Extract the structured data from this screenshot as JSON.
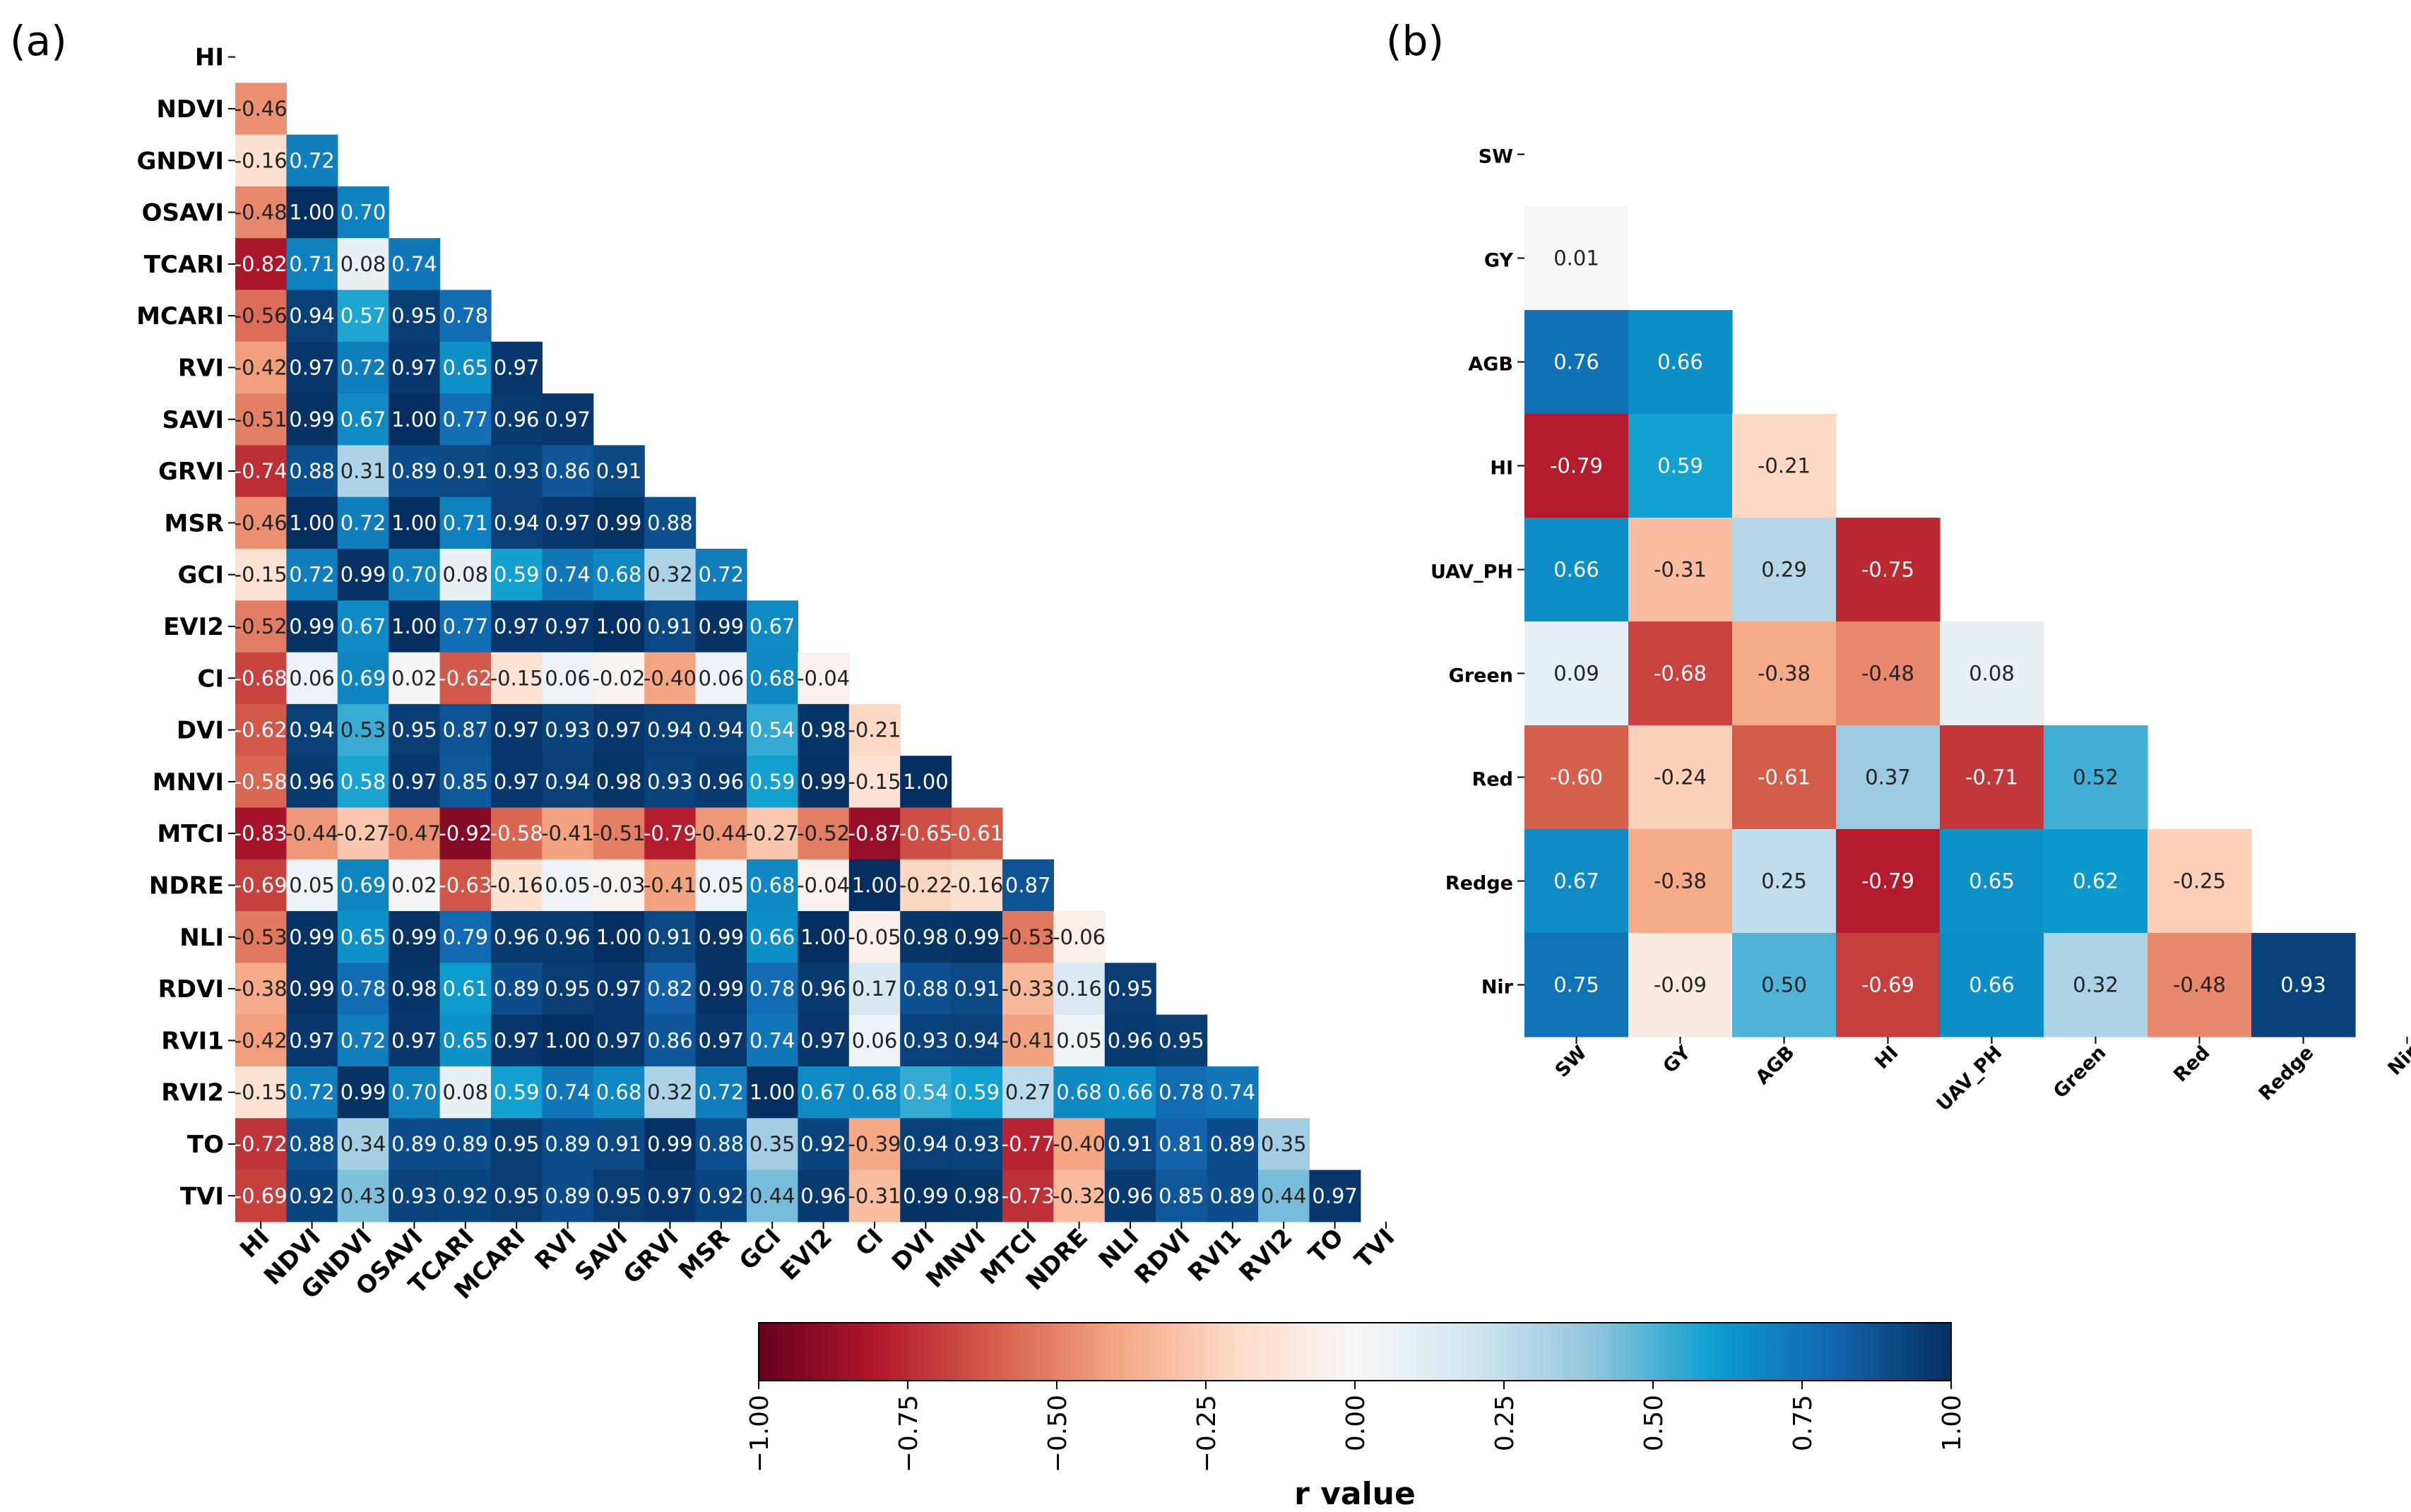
{
  "chart_data": [
    {
      "type": "heatmap",
      "panel": "(a)",
      "triangle": "lower",
      "labels": [
        "HI",
        "NDVI",
        "GNDVI",
        "OSAVI",
        "TCARI",
        "MCARI",
        "RVI",
        "SAVI",
        "GRVI",
        "MSR",
        "GCI",
        "EVI2",
        "CI",
        "DVI",
        "MNVI",
        "MTCI",
        "NDRE",
        "NLI",
        "RDVI",
        "RVI1",
        "RVI2",
        "TO",
        "TVI"
      ],
      "rows": [
        [],
        [
          "-0.46"
        ],
        [
          "-0.16",
          "0.72"
        ],
        [
          "-0.48",
          "1.00",
          "0.70"
        ],
        [
          "-0.82",
          "0.71",
          "0.08",
          "0.74"
        ],
        [
          "-0.56",
          "0.94",
          "0.57",
          "0.95",
          "0.78"
        ],
        [
          "-0.42",
          "0.97",
          "0.72",
          "0.97",
          "0.65",
          "0.97"
        ],
        [
          "-0.51",
          "0.99",
          "0.67",
          "1.00",
          "0.77",
          "0.96",
          "0.97"
        ],
        [
          "-0.74",
          "0.88",
          "0.31",
          "0.89",
          "0.91",
          "0.93",
          "0.86",
          "0.91"
        ],
        [
          "-0.46",
          "1.00",
          "0.72",
          "1.00",
          "0.71",
          "0.94",
          "0.97",
          "0.99",
          "0.88"
        ],
        [
          "-0.15",
          "0.72",
          "0.99",
          "0.70",
          "0.08",
          "0.59",
          "0.74",
          "0.68",
          "0.32",
          "0.72"
        ],
        [
          "-0.52",
          "0.99",
          "0.67",
          "1.00",
          "0.77",
          "0.97",
          "0.97",
          "1.00",
          "0.91",
          "0.99",
          "0.67"
        ],
        [
          "-0.68",
          "0.06",
          "0.69",
          "0.02",
          "-0.62",
          "-0.15",
          "0.06",
          "-0.02",
          "-0.40",
          "0.06",
          "0.68",
          "-0.04"
        ],
        [
          "-0.62",
          "0.94",
          "0.53",
          "0.95",
          "0.87",
          "0.97",
          "0.93",
          "0.97",
          "0.94",
          "0.94",
          "0.54",
          "0.98",
          "-0.21"
        ],
        [
          "-0.58",
          "0.96",
          "0.58",
          "0.97",
          "0.85",
          "0.97",
          "0.94",
          "0.98",
          "0.93",
          "0.96",
          "0.59",
          "0.99",
          "-0.15",
          "1.00"
        ],
        [
          "-0.83",
          "-0.44",
          "-0.27",
          "-0.47",
          "-0.92",
          "-0.58",
          "-0.41",
          "-0.51",
          "-0.79",
          "-0.44",
          "-0.27",
          "-0.52",
          "-0.87",
          "-0.65",
          "-0.61"
        ],
        [
          "-0.69",
          "0.05",
          "0.69",
          "0.02",
          "-0.63",
          "-0.16",
          "0.05",
          "-0.03",
          "-0.41",
          "0.05",
          "0.68",
          "-0.04",
          "1.00",
          "-0.22",
          "-0.16",
          "0.87"
        ],
        [
          "-0.53",
          "0.99",
          "0.65",
          "0.99",
          "0.79",
          "0.96",
          "0.96",
          "1.00",
          "0.91",
          "0.99",
          "0.66",
          "1.00",
          "-0.05",
          "0.98",
          "0.99",
          "-0.53",
          "-0.06"
        ],
        [
          "-0.38",
          "0.99",
          "0.78",
          "0.98",
          "0.61",
          "0.89",
          "0.95",
          "0.97",
          "0.82",
          "0.99",
          "0.78",
          "0.96",
          "0.17",
          "0.88",
          "0.91",
          "-0.33",
          "0.16",
          "0.95"
        ],
        [
          "-0.42",
          "0.97",
          "0.72",
          "0.97",
          "0.65",
          "0.97",
          "1.00",
          "0.97",
          "0.86",
          "0.97",
          "0.74",
          "0.97",
          "0.06",
          "0.93",
          "0.94",
          "-0.41",
          "0.05",
          "0.96",
          "0.95"
        ],
        [
          "-0.15",
          "0.72",
          "0.99",
          "0.70",
          "0.08",
          "0.59",
          "0.74",
          "0.68",
          "0.32",
          "0.72",
          "1.00",
          "0.67",
          "0.68",
          "0.54",
          "0.59",
          "0.27",
          "0.68",
          "0.66",
          "0.78",
          "0.74"
        ],
        [
          "-0.72",
          "0.88",
          "0.34",
          "0.89",
          "0.89",
          "0.95",
          "0.89",
          "0.91",
          "0.99",
          "0.88",
          "0.35",
          "0.92",
          "-0.39",
          "0.94",
          "0.93",
          "-0.77",
          "-0.40",
          "0.91",
          "0.81",
          "0.89",
          "0.35"
        ],
        [
          "-0.69",
          "0.92",
          "0.43",
          "0.93",
          "0.92",
          "0.95",
          "0.89",
          "0.95",
          "0.97",
          "0.92",
          "0.44",
          "0.96",
          "-0.31",
          "0.99",
          "0.98",
          "-0.73",
          "-0.32",
          "0.96",
          "0.85",
          "0.89",
          "0.44",
          "0.97"
        ]
      ]
    },
    {
      "type": "heatmap",
      "panel": "(b)",
      "triangle": "lower",
      "labels": [
        "SW",
        "GY",
        "AGB",
        "HI",
        "UAV_PH",
        "Green",
        "Red",
        "Redge",
        "Nir"
      ],
      "rows": [
        [],
        [
          "0.01"
        ],
        [
          "0.76",
          "0.66"
        ],
        [
          "-0.79",
          "0.59",
          "-0.21"
        ],
        [
          "0.66",
          "-0.31",
          "0.29",
          "-0.75"
        ],
        [
          "0.09",
          "-0.68",
          "-0.38",
          "-0.48",
          "0.08"
        ],
        [
          "-0.60",
          "-0.24",
          "-0.61",
          "0.37",
          "-0.71",
          "0.52"
        ],
        [
          "0.67",
          "-0.38",
          "0.25",
          "-0.79",
          "0.65",
          "0.62",
          "-0.25"
        ],
        [
          "0.75",
          "-0.09",
          "0.50",
          "-0.69",
          "0.66",
          "0.32",
          "-0.48",
          "0.93"
        ]
      ]
    }
  ],
  "colorbar": {
    "colormap": "RdBu",
    "range": [
      -1.0,
      1.0
    ],
    "ticks": [
      "−1.00",
      "−0.75",
      "−0.50",
      "−0.25",
      "0.00",
      "0.25",
      "0.50",
      "0.75",
      "1.00"
    ],
    "label": "r value",
    "tick_values": [
      -1.0,
      -0.75,
      -0.5,
      -0.25,
      0.0,
      0.25,
      0.5,
      0.75,
      1.0
    ]
  },
  "panel_labels": {
    "a": "(a)",
    "b": "(b)"
  }
}
